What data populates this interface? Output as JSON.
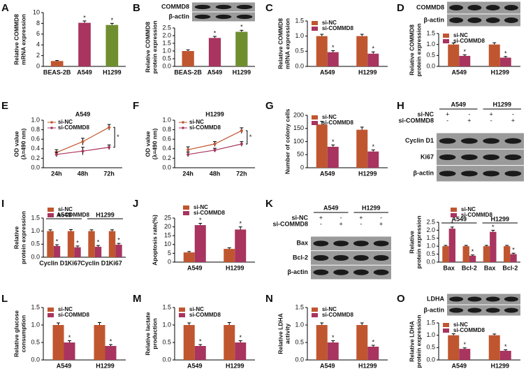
{
  "chart_data": [
    {
      "type": "bar",
      "panel": "A",
      "ylabel": [
        "Relative COMMD8",
        "mRNA expression"
      ],
      "categories": [
        "BEAS-2B",
        "A549",
        "H1299"
      ],
      "values": [
        1,
        8.1,
        7.7
      ],
      "errors": [
        0.1,
        0.35,
        0.3
      ],
      "colors": [
        "#c0562f",
        "#a8345f",
        "#6f8f2f"
      ],
      "annotations": [
        null,
        "*",
        "*"
      ],
      "ylim": [
        0,
        10
      ],
      "yticks": [
        0,
        2,
        4,
        6,
        8,
        10
      ]
    },
    {
      "type": "bar",
      "panel": "B",
      "ylabel": [
        "Relative COMMD8",
        "protein expression"
      ],
      "categories": [
        "BEAS-2B",
        "A549",
        "H1299"
      ],
      "values": [
        1,
        1.85,
        2.25
      ],
      "errors": [
        0.08,
        0.1,
        0.1
      ],
      "colors": [
        "#c0562f",
        "#a8345f",
        "#6f8f2f"
      ],
      "annotations": [
        null,
        "*",
        "*"
      ],
      "ylim": [
        0,
        2.5
      ],
      "yticks": [
        {
          "value": 0,
          "label": "0.0"
        },
        0.5,
        {
          "value": 1,
          "label": "1.0"
        },
        1.5,
        {
          "value": 2,
          "label": "2.0"
        },
        2.5
      ],
      "blot": {
        "rows": [
          "COMMD8",
          "β-actin"
        ]
      }
    },
    {
      "type": "bar",
      "panel": "C",
      "ylabel": [
        "Relative COMMD8",
        "mRNA expression"
      ],
      "categories": [
        "A549",
        "H1299"
      ],
      "series": [
        {
          "name": "si-NC",
          "color": "#c0562f",
          "values": [
            1,
            1
          ],
          "errors": [
            0.06,
            0.06
          ],
          "annotations": [
            null,
            null
          ]
        },
        {
          "name": "si-COMMD8",
          "color": "#a8345f",
          "values": [
            0.47,
            0.42
          ],
          "errors": [
            0.05,
            0.06
          ],
          "annotations": [
            "*",
            "*"
          ]
        }
      ],
      "ylim": [
        0,
        1.5
      ],
      "yticks": [
        {
          "value": 0,
          "label": "0.0"
        },
        0.5,
        {
          "value": 1,
          "label": "1.0"
        },
        1.5
      ]
    },
    {
      "type": "bar",
      "panel": "D",
      "ylabel": [
        "Relative COMMD8",
        "protein expression"
      ],
      "categories": [
        "A549",
        "H1299"
      ],
      "series": [
        {
          "name": "si-NC",
          "color": "#c0562f",
          "values": [
            1,
            1
          ],
          "errors": [
            0.07,
            0.08
          ],
          "annotations": [
            null,
            null
          ]
        },
        {
          "name": "si-COMMD8",
          "color": "#a8345f",
          "values": [
            0.48,
            0.4
          ],
          "errors": [
            0.05,
            0.05
          ],
          "annotations": [
            "*",
            "*"
          ]
        }
      ],
      "ylim": [
        0,
        1.5
      ],
      "yticks": [
        {
          "value": 0,
          "label": "0.0"
        },
        0.5,
        {
          "value": 1,
          "label": "1.0"
        },
        1.5
      ],
      "blot": {
        "rows": [
          "COMMD8",
          "β-actin"
        ]
      }
    },
    {
      "type": "line",
      "panel": "E",
      "subtitle": "A549",
      "ylabel": [
        "OD value",
        "(λ=490 nm)"
      ],
      "categories": [
        "24h",
        "48h",
        "72h"
      ],
      "series": [
        {
          "name": "si-NC",
          "color": "#c0562f",
          "values": [
            0.32,
            0.55,
            0.85
          ],
          "errors": [
            0.06,
            0.07,
            0.06
          ]
        },
        {
          "name": "si-COMMD8",
          "color": "#a8345f",
          "values": [
            0.28,
            0.35,
            0.43
          ],
          "errors": [
            0.05,
            0.08,
            0.05
          ]
        }
      ],
      "annotation": "*",
      "ylim": [
        0,
        1
      ],
      "yticks": [
        {
          "value": 0,
          "label": "0.0"
        },
        0.2,
        0.4,
        0.6,
        0.8,
        {
          "value": 1,
          "label": "1.0"
        }
      ]
    },
    {
      "type": "line",
      "panel": "F",
      "subtitle": "H1299",
      "ylabel": [
        "OD value",
        "(λ=490 nm)"
      ],
      "categories": [
        "24h",
        "48h",
        "72h"
      ],
      "series": [
        {
          "name": "si-NC",
          "color": "#c0562f",
          "values": [
            0.38,
            0.5,
            0.78
          ],
          "errors": [
            0.06,
            0.05,
            0.06
          ]
        },
        {
          "name": "si-COMMD8",
          "color": "#a8345f",
          "values": [
            0.28,
            0.37,
            0.5
          ],
          "errors": [
            0.05,
            0.04,
            0.05
          ]
        }
      ],
      "annotation": "*",
      "ylim": [
        0,
        1
      ],
      "yticks": [
        {
          "value": 0,
          "label": "0.0"
        },
        0.2,
        0.4,
        0.6,
        0.8,
        {
          "value": 1,
          "label": "1.0"
        }
      ]
    },
    {
      "type": "bar",
      "panel": "G",
      "ylabel": [
        "Number of colony cells"
      ],
      "categories": [
        "A549",
        "H1299"
      ],
      "series": [
        {
          "name": "si-NC",
          "color": "#c0562f",
          "values": [
            165,
            145
          ],
          "errors": [
            12,
            10
          ],
          "annotations": [
            null,
            null
          ]
        },
        {
          "name": "si-COMMD8",
          "color": "#a8345f",
          "values": [
            80,
            62
          ],
          "errors": [
            7,
            6
          ],
          "annotations": [
            "*",
            "*"
          ]
        }
      ],
      "ylim": [
        0,
        200
      ],
      "yticks": [
        0,
        50,
        100,
        150,
        200
      ]
    },
    {
      "type": "blot",
      "panel": "H",
      "blot": {
        "groups": [
          "A549",
          "H1299"
        ],
        "conditions": [
          {
            "name": "si-NC",
            "signs": [
              "+",
              "-",
              "+",
              "-"
            ]
          },
          {
            "name": "si-COMMD8",
            "signs": [
              "-",
              "+",
              "-",
              "+"
            ]
          }
        ],
        "rows": [
          "Cyclin D1",
          "Ki67",
          "β-actin"
        ]
      }
    },
    {
      "type": "bar",
      "panel": "I",
      "ylabel": [
        "Relative",
        "protein expression"
      ],
      "groups": [
        "A549",
        "H1299"
      ],
      "categories": [
        "Cyclin D1",
        "Ki67",
        "Cyclin D1",
        "Ki67"
      ],
      "series": [
        {
          "name": "si-NC",
          "color": "#c0562f",
          "values": [
            1,
            1,
            1,
            1
          ],
          "errors": [
            0.05,
            0.06,
            0.05,
            0.05
          ],
          "annotations": [
            null,
            null,
            null,
            null
          ]
        },
        {
          "name": "si-COMMD8",
          "color": "#a8345f",
          "values": [
            0.43,
            0.38,
            0.4,
            0.48
          ],
          "errors": [
            0.05,
            0.05,
            0.05,
            0.05
          ],
          "annotations": [
            "*",
            "*",
            "*",
            "*"
          ]
        }
      ],
      "ylim": [
        0,
        1.5
      ],
      "yticks": [
        {
          "value": 0,
          "label": "0.0"
        },
        0.5,
        {
          "value": 1,
          "label": "1.0"
        },
        1.5
      ]
    },
    {
      "type": "bar",
      "panel": "J",
      "ylabel": [
        "Apoptosis rate(%)"
      ],
      "categories": [
        "A549",
        "H1299"
      ],
      "series": [
        {
          "name": "si-NC",
          "color": "#c0562f",
          "values": [
            5.5,
            7.5
          ],
          "errors": [
            0.5,
            0.6
          ],
          "annotations": [
            null,
            null
          ]
        },
        {
          "name": "si-COMMD8",
          "color": "#a8345f",
          "values": [
            21,
            18.5
          ],
          "errors": [
            1,
            1.5
          ],
          "annotations": [
            "*",
            "*"
          ]
        }
      ],
      "ylim": [
        0,
        25
      ],
      "yticks": [
        0,
        5,
        10,
        15,
        20,
        25
      ]
    },
    {
      "type": "bar",
      "panel": "K",
      "ylabel": [
        "Relative",
        "protein expression"
      ],
      "groups": [
        "A549",
        "H1299"
      ],
      "categories": [
        "Bax",
        "Bcl-2",
        "Bax",
        "Bcl-2"
      ],
      "series": [
        {
          "name": "si-NC",
          "color": "#c0562f",
          "values": [
            1,
            1,
            1,
            1
          ],
          "errors": [
            0.05,
            0.05,
            0.05,
            0.05
          ],
          "annotations": [
            null,
            null,
            null,
            null
          ]
        },
        {
          "name": "si-COMMD8",
          "color": "#a8345f",
          "values": [
            2.1,
            0.4,
            1.9,
            0.5
          ],
          "errors": [
            0.1,
            0.05,
            0.1,
            0.06
          ],
          "annotations": [
            "*",
            "*",
            "*",
            "*"
          ]
        }
      ],
      "ylim": [
        0,
        2.5
      ],
      "yticks": [
        {
          "value": 0,
          "label": "0.0"
        },
        0.5,
        {
          "value": 1,
          "label": "1.0"
        },
        1.5,
        {
          "value": 2,
          "label": "2.0"
        },
        2.5
      ],
      "blot": {
        "groups": [
          "A549",
          "H1299"
        ],
        "conditions": [
          {
            "name": "si-NC",
            "signs": [
              "+",
              "-",
              "+",
              "-"
            ]
          },
          {
            "name": "si-COMMD8",
            "signs": [
              "-",
              "+",
              "-",
              "+"
            ]
          }
        ],
        "rows": [
          "Bax",
          "Bcl-2",
          "β-actin"
        ]
      }
    },
    {
      "type": "bar",
      "panel": "L",
      "ylabel": [
        "Relative glucose",
        "consumption"
      ],
      "categories": [
        "A549",
        "H1299"
      ],
      "series": [
        {
          "name": "si-NC",
          "color": "#c0562f",
          "values": [
            1,
            1
          ],
          "errors": [
            0.06,
            0.07
          ],
          "annotations": [
            null,
            null
          ]
        },
        {
          "name": "si-COMMD8",
          "color": "#a8345f",
          "values": [
            0.5,
            0.4
          ],
          "errors": [
            0.05,
            0.04
          ],
          "annotations": [
            "*",
            "*"
          ]
        }
      ],
      "ylim": [
        0,
        1.5
      ],
      "yticks": [
        {
          "value": 0,
          "label": "0.0"
        },
        0.5,
        {
          "value": 1,
          "label": "1.0"
        },
        1.5
      ]
    },
    {
      "type": "bar",
      "panel": "M",
      "ylabel": [
        "Relative lactate",
        "production"
      ],
      "categories": [
        "A549",
        "H1299"
      ],
      "series": [
        {
          "name": "si-NC",
          "color": "#c0562f",
          "values": [
            1,
            1
          ],
          "errors": [
            0.06,
            0.07
          ],
          "annotations": [
            null,
            null
          ]
        },
        {
          "name": "si-COMMD8",
          "color": "#a8345f",
          "values": [
            0.4,
            0.5
          ],
          "errors": [
            0.04,
            0.05
          ],
          "annotations": [
            "*",
            "*"
          ]
        }
      ],
      "ylim": [
        0,
        1.5
      ],
      "yticks": [
        {
          "value": 0,
          "label": "0.0"
        },
        0.5,
        {
          "value": 1,
          "label": "1.0"
        },
        1.5
      ]
    },
    {
      "type": "bar",
      "panel": "N",
      "ylabel": [
        "Relative LDHA",
        "activity"
      ],
      "categories": [
        "A549",
        "H1299"
      ],
      "series": [
        {
          "name": "si-NC",
          "color": "#c0562f",
          "values": [
            1,
            1
          ],
          "errors": [
            0.06,
            0.06
          ],
          "annotations": [
            null,
            null
          ]
        },
        {
          "name": "si-COMMD8",
          "color": "#a8345f",
          "values": [
            0.5,
            0.38
          ],
          "errors": [
            0.05,
            0.04
          ],
          "annotations": [
            "*",
            "*"
          ]
        }
      ],
      "ylim": [
        0,
        1.5
      ],
      "yticks": [
        {
          "value": 0,
          "label": "0.0"
        },
        0.5,
        {
          "value": 1,
          "label": "1.0"
        },
        1.5
      ]
    },
    {
      "type": "bar",
      "panel": "O",
      "ylabel": [
        "Relative LDHA",
        "protein expression"
      ],
      "categories": [
        "A549",
        "H1299"
      ],
      "series": [
        {
          "name": "si-NC",
          "color": "#c0562f",
          "values": [
            1,
            1
          ],
          "errors": [
            0.06,
            0.05
          ],
          "annotations": [
            null,
            null
          ]
        },
        {
          "name": "si-COMMD8",
          "color": "#a8345f",
          "values": [
            0.45,
            0.37
          ],
          "errors": [
            0.04,
            0.04
          ],
          "annotations": [
            "*",
            "*"
          ]
        }
      ],
      "ylim": [
        0,
        1.5
      ],
      "yticks": [
        {
          "value": 0,
          "label": "0.0"
        },
        0.5,
        {
          "value": 1,
          "label": "1.0"
        },
        1.5
      ],
      "blot": {
        "rows": [
          "LDHA",
          "β-actin"
        ]
      }
    }
  ]
}
